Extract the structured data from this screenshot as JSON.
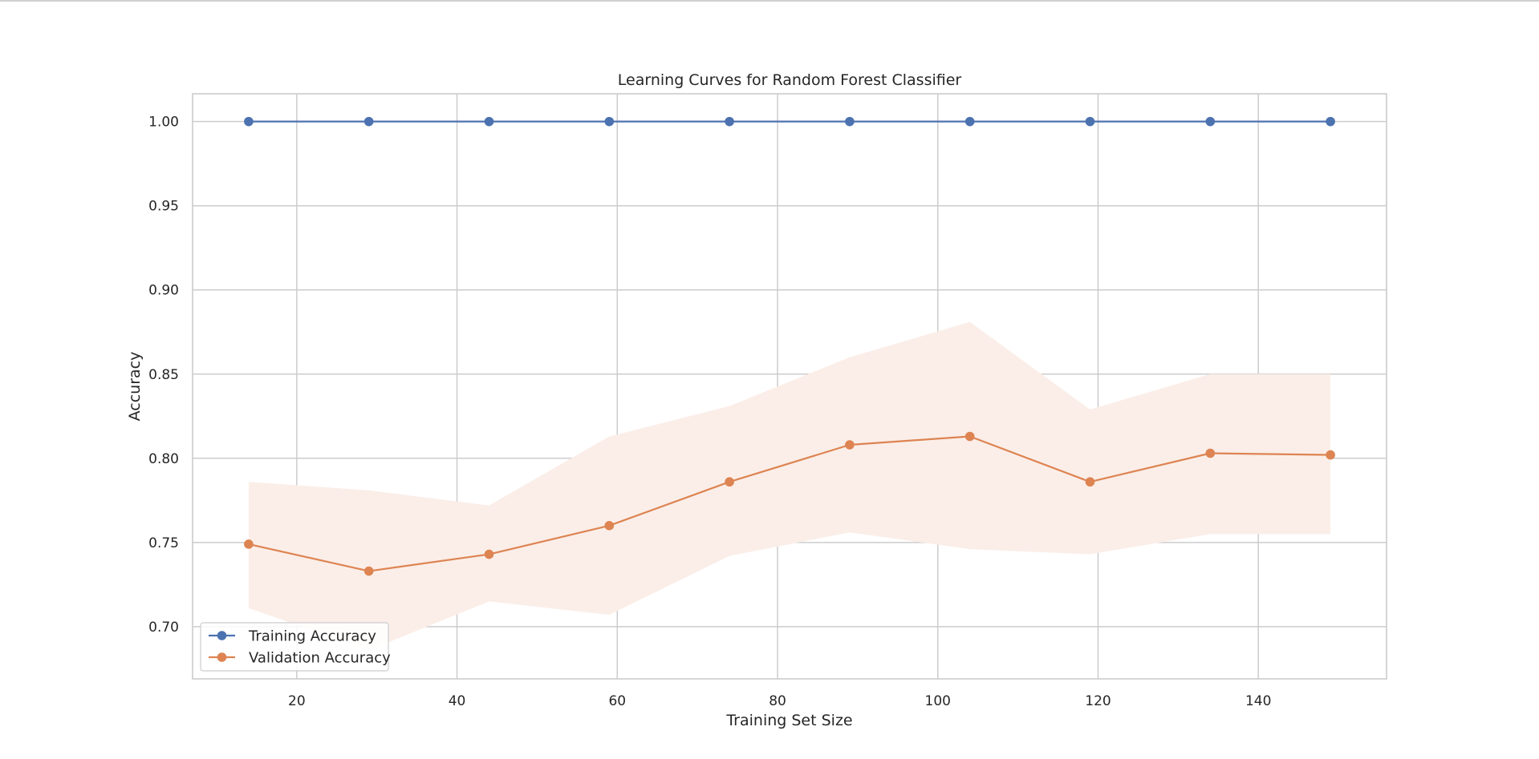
{
  "chart_data": {
    "type": "line",
    "title": "Learning Curves for Random Forest Classifier",
    "xlabel": "Training Set Size",
    "ylabel": "Accuracy",
    "xlim": [
      7,
      156
    ],
    "ylim": [
      0.669,
      1.0165
    ],
    "x_ticks": [
      20,
      40,
      60,
      80,
      100,
      120,
      140
    ],
    "y_ticks": [
      0.7,
      0.75,
      0.8,
      0.85,
      0.9,
      0.95,
      1.0
    ],
    "grid": true,
    "legend_position": "lower-left",
    "x": [
      14,
      29,
      44,
      59,
      74,
      89,
      104,
      119,
      134,
      149
    ],
    "series": [
      {
        "name": "Training Accuracy",
        "color": "#4c72b0",
        "values": [
          1.0,
          1.0,
          1.0,
          1.0,
          1.0,
          1.0,
          1.0,
          1.0,
          1.0,
          1.0
        ]
      },
      {
        "name": "Validation Accuracy",
        "color": "#dd8452",
        "values": [
          0.749,
          0.733,
          0.743,
          0.76,
          0.786,
          0.808,
          0.813,
          0.786,
          0.803,
          0.802
        ],
        "band_upper": [
          0.786,
          0.781,
          0.772,
          0.813,
          0.831,
          0.86,
          0.881,
          0.829,
          0.85,
          0.85
        ],
        "band_lower": [
          0.711,
          0.686,
          0.715,
          0.707,
          0.742,
          0.756,
          0.746,
          0.743,
          0.755,
          0.755
        ],
        "band_color": "#fbeee8"
      }
    ]
  }
}
